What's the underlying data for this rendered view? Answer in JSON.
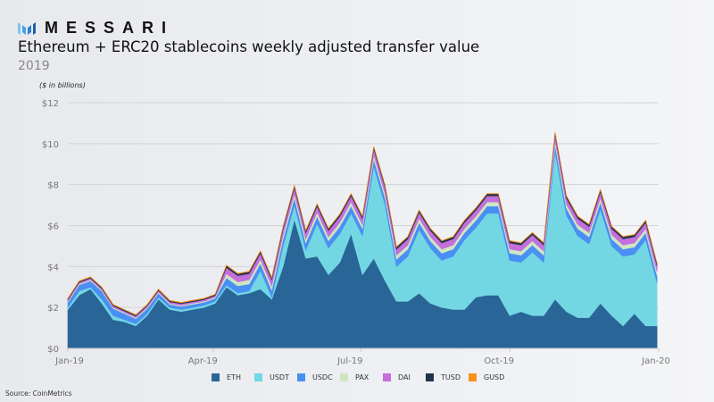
{
  "brand": {
    "name": "MESSARI"
  },
  "title": "Ethereum + ERC20 stablecoins weekly adjusted transfer value",
  "subtitle": "2019",
  "source": "Source: CoinMetrics",
  "chart_data": {
    "type": "area",
    "stacked": true,
    "title": "Ethereum + ERC20 stablecoins weekly adjusted transfer value",
    "subtitle": "2019",
    "ylabel": "($ in billions)",
    "xlabel": "",
    "xlim": [
      "2019-01-01",
      "2020-01-01"
    ],
    "ylim": [
      0,
      12
    ],
    "grid": true,
    "legend_position": "bottom",
    "x_ticks": [
      {
        "date": "2019-01-01",
        "label": "Jan-19"
      },
      {
        "date": "2019-04-01",
        "label": "Apr-19"
      },
      {
        "date": "2019-07-01",
        "label": "Jul-19"
      },
      {
        "date": "2019-10-01",
        "label": "Oct-19"
      },
      {
        "date": "2020-01-01",
        "label": "Jan-20"
      }
    ],
    "y_ticks": [
      {
        "value": 0,
        "label": "$0"
      },
      {
        "value": 2,
        "label": "$2"
      },
      {
        "value": 4,
        "label": "$4"
      },
      {
        "value": 6,
        "label": "$6"
      },
      {
        "value": 8,
        "label": "$8"
      },
      {
        "value": 10,
        "label": "$10"
      },
      {
        "value": 12,
        "label": "$12"
      }
    ],
    "x": [
      "2019-01-01",
      "2019-01-08",
      "2019-01-15",
      "2019-01-22",
      "2019-01-29",
      "2019-02-05",
      "2019-02-12",
      "2019-02-19",
      "2019-02-26",
      "2019-03-05",
      "2019-03-12",
      "2019-03-19",
      "2019-03-26",
      "2019-04-02",
      "2019-04-09",
      "2019-04-16",
      "2019-04-23",
      "2019-04-30",
      "2019-05-07",
      "2019-05-14",
      "2019-05-21",
      "2019-05-28",
      "2019-06-04",
      "2019-06-11",
      "2019-06-18",
      "2019-06-25",
      "2019-07-02",
      "2019-07-09",
      "2019-07-16",
      "2019-07-23",
      "2019-07-30",
      "2019-08-06",
      "2019-08-13",
      "2019-08-20",
      "2019-08-27",
      "2019-09-03",
      "2019-09-10",
      "2019-09-17",
      "2019-09-24",
      "2019-10-01",
      "2019-10-08",
      "2019-10-15",
      "2019-10-22",
      "2019-10-29",
      "2019-11-05",
      "2019-11-12",
      "2019-11-19",
      "2019-11-26",
      "2019-12-03",
      "2019-12-10",
      "2019-12-17",
      "2019-12-24",
      "2019-12-31"
    ],
    "series": [
      {
        "name": "ETH",
        "color": "#2a6597",
        "values": [
          1.9,
          2.6,
          2.9,
          2.2,
          1.4,
          1.3,
          1.1,
          1.6,
          2.4,
          1.9,
          1.8,
          1.9,
          2.0,
          2.2,
          3.0,
          2.6,
          2.7,
          2.9,
          2.4,
          4.0,
          6.3,
          4.4,
          4.5,
          3.6,
          4.2,
          5.6,
          3.6,
          4.4,
          3.3,
          2.3,
          2.3,
          2.7,
          2.2,
          2.0,
          1.9,
          1.9,
          2.5,
          2.6,
          2.6,
          1.6,
          1.8,
          1.6,
          1.6,
          2.4,
          1.8,
          1.5,
          1.5,
          2.2,
          1.6,
          1.1,
          1.7,
          1.1,
          1.1
        ]
      },
      {
        "name": "USDT",
        "color": "#73d7e3",
        "values": [
          0.1,
          0.2,
          0.1,
          0.2,
          0.2,
          0.1,
          0.1,
          0.1,
          0.1,
          0.1,
          0.1,
          0.1,
          0.1,
          0.1,
          0.1,
          0.1,
          0.1,
          0.9,
          0.1,
          1.0,
          0.7,
          0.4,
          1.6,
          1.3,
          1.4,
          1.0,
          1.9,
          4.5,
          3.7,
          1.7,
          2.2,
          3.1,
          2.7,
          2.3,
          2.6,
          3.4,
          3.4,
          4.0,
          4.0,
          2.7,
          2.4,
          3.1,
          2.6,
          7.2,
          4.7,
          4.0,
          3.6,
          4.6,
          3.4,
          3.4,
          2.9,
          4.2,
          2.1
        ]
      },
      {
        "name": "USDC",
        "color": "#4a8ff4",
        "values": [
          0.25,
          0.3,
          0.3,
          0.4,
          0.35,
          0.3,
          0.25,
          0.25,
          0.2,
          0.15,
          0.15,
          0.15,
          0.15,
          0.15,
          0.35,
          0.35,
          0.35,
          0.35,
          0.35,
          0.35,
          0.35,
          0.35,
          0.35,
          0.35,
          0.35,
          0.35,
          0.35,
          0.35,
          0.35,
          0.35,
          0.35,
          0.35,
          0.35,
          0.35,
          0.35,
          0.35,
          0.35,
          0.35,
          0.35,
          0.35,
          0.35,
          0.35,
          0.35,
          0.35,
          0.35,
          0.35,
          0.35,
          0.35,
          0.35,
          0.35,
          0.35,
          0.35,
          0.35
        ]
      },
      {
        "name": "PAX",
        "color": "#cfe6c1",
        "values": [
          0.05,
          0.05,
          0.05,
          0.05,
          0.05,
          0.05,
          0.05,
          0.05,
          0.05,
          0.05,
          0.05,
          0.05,
          0.05,
          0.05,
          0.2,
          0.2,
          0.2,
          0.2,
          0.2,
          0.2,
          0.2,
          0.2,
          0.2,
          0.2,
          0.2,
          0.2,
          0.2,
          0.2,
          0.2,
          0.2,
          0.2,
          0.2,
          0.2,
          0.2,
          0.2,
          0.2,
          0.2,
          0.2,
          0.2,
          0.2,
          0.2,
          0.2,
          0.2,
          0.2,
          0.2,
          0.2,
          0.2,
          0.2,
          0.2,
          0.2,
          0.2,
          0.2,
          0.2
        ]
      },
      {
        "name": "DAI",
        "color": "#c46fdc",
        "values": [
          0.08,
          0.08,
          0.08,
          0.08,
          0.08,
          0.08,
          0.08,
          0.08,
          0.08,
          0.08,
          0.08,
          0.08,
          0.08,
          0.08,
          0.3,
          0.3,
          0.3,
          0.3,
          0.3,
          0.3,
          0.3,
          0.3,
          0.3,
          0.3,
          0.3,
          0.3,
          0.3,
          0.3,
          0.3,
          0.3,
          0.3,
          0.3,
          0.3,
          0.3,
          0.3,
          0.3,
          0.3,
          0.3,
          0.3,
          0.3,
          0.3,
          0.3,
          0.3,
          0.3,
          0.3,
          0.3,
          0.3,
          0.3,
          0.3,
          0.3,
          0.3,
          0.3,
          0.3
        ]
      },
      {
        "name": "TUSD",
        "color": "#22344d",
        "values": [
          0.05,
          0.05,
          0.05,
          0.05,
          0.05,
          0.05,
          0.05,
          0.05,
          0.05,
          0.05,
          0.05,
          0.05,
          0.05,
          0.05,
          0.1,
          0.1,
          0.1,
          0.1,
          0.1,
          0.1,
          0.1,
          0.1,
          0.1,
          0.1,
          0.1,
          0.1,
          0.1,
          0.1,
          0.1,
          0.1,
          0.1,
          0.1,
          0.1,
          0.1,
          0.1,
          0.1,
          0.1,
          0.1,
          0.1,
          0.1,
          0.1,
          0.1,
          0.1,
          0.1,
          0.1,
          0.1,
          0.1,
          0.1,
          0.1,
          0.1,
          0.1,
          0.1,
          0.1
        ]
      },
      {
        "name": "GUSD",
        "color": "#f7931a",
        "values": [
          0.02,
          0.02,
          0.02,
          0.02,
          0.02,
          0.02,
          0.02,
          0.02,
          0.02,
          0.02,
          0.02,
          0.02,
          0.02,
          0.02,
          0.02,
          0.02,
          0.02,
          0.02,
          0.02,
          0.02,
          0.02,
          0.02,
          0.02,
          0.02,
          0.02,
          0.02,
          0.02,
          0.02,
          0.02,
          0.02,
          0.02,
          0.02,
          0.02,
          0.02,
          0.02,
          0.02,
          0.02,
          0.02,
          0.02,
          0.02,
          0.02,
          0.02,
          0.02,
          0.02,
          0.02,
          0.02,
          0.02,
          0.02,
          0.02,
          0.02,
          0.02,
          0.02,
          0.02
        ]
      }
    ]
  }
}
